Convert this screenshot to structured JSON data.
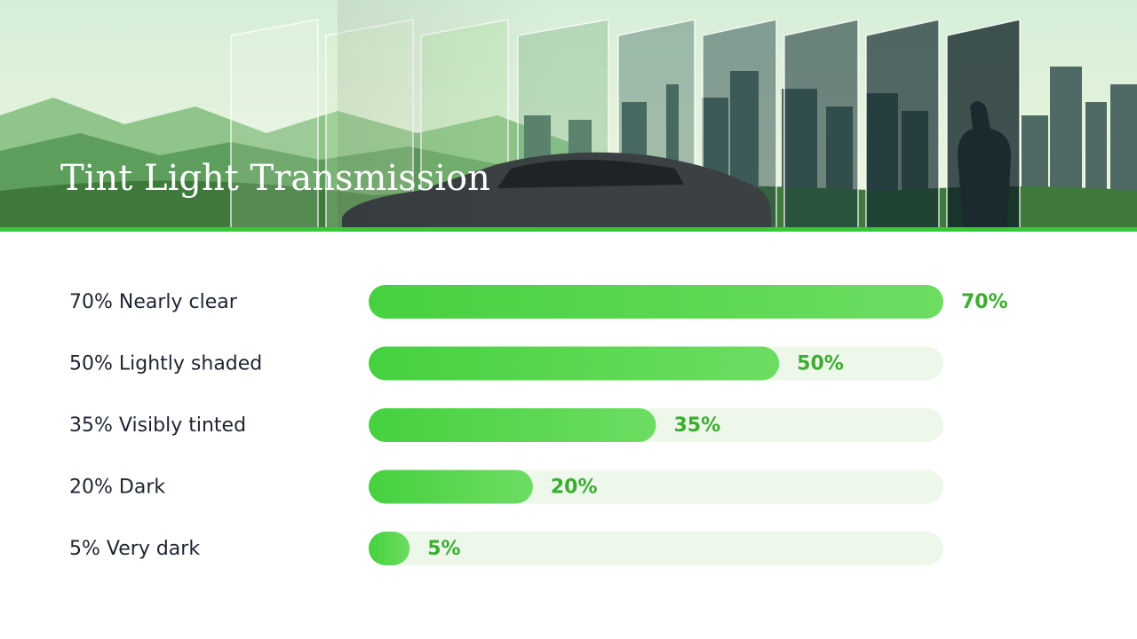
{
  "chart_data": {
    "type": "bar",
    "orientation": "horizontal",
    "title": "Tint Light Transmission",
    "categories": [
      "70% Nearly clear",
      "50% Lightly shaded",
      "35% Visibly tinted",
      "20% Dark",
      "5% Very dark"
    ],
    "values": [
      70,
      50,
      35,
      20,
      5
    ],
    "value_labels": [
      "70%",
      "50%",
      "35%",
      "20%",
      "5%"
    ],
    "color": "#45d13f",
    "xlim": [
      0,
      70
    ]
  }
}
